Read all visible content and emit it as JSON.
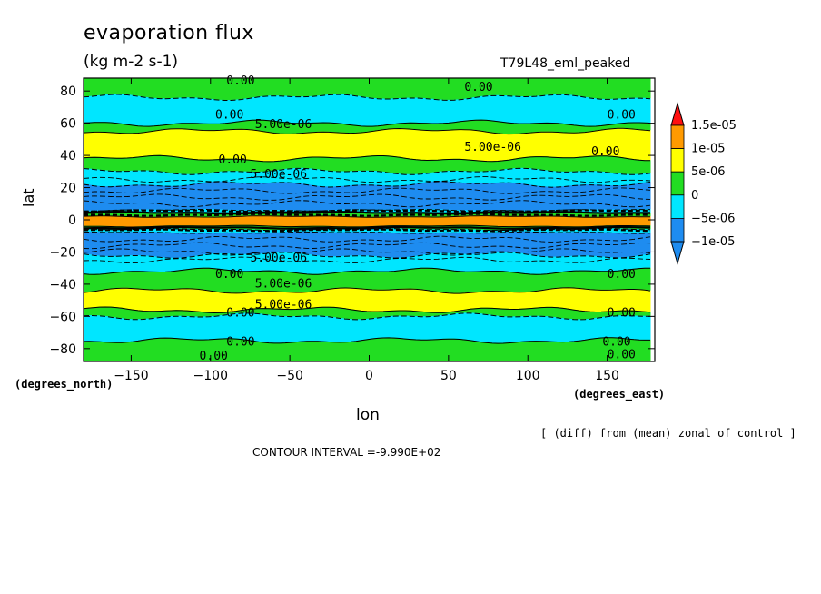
{
  "title": "evaporation flux",
  "units": "(kg m-2 s-1)",
  "run_label": "T79L48_eml_peaked",
  "note": "[ (diff) from (mean) zonal of control ]",
  "contour_interval": "CONTOUR INTERVAL =-9.990E+02",
  "chart_data": {
    "type": "heatmap",
    "title": "evaporation flux",
    "xlabel": "lon",
    "ylabel": "lat",
    "x_units": "(degrees_east)",
    "y_units": "(degrees_north)",
    "xlim": [
      -180,
      180
    ],
    "ylim": [
      -88,
      88
    ],
    "xticks": [
      -150,
      -100,
      -50,
      0,
      50,
      100,
      150
    ],
    "yticks": [
      -80,
      -60,
      -40,
      -20,
      0,
      20,
      40,
      60,
      80
    ],
    "colorbar": {
      "labels": [
        "1.5e-05",
        "1e-05",
        "5e-06",
        "0",
        "-5e-06",
        "-1e-05"
      ],
      "levels": [
        -1e-05,
        -5e-06,
        0,
        5e-06,
        1e-05,
        1.5e-05
      ],
      "colors": {
        "below": "#1e8cf0",
        "-1e-05_to_-5e-06": "#1e8cf0",
        "-5e-06_to_0": "#00e6ff",
        "0_to_5e-06": "#22dd22",
        "5e-06_to_1e-05": "#ffff00",
        "1e-05_to_1.5e-05": "#ff9a00",
        "above": "#ff1010"
      }
    },
    "zonal_bands": [
      {
        "lat_min": 76,
        "lat_max": 88,
        "value_band": "0_to_5e-06"
      },
      {
        "lat_min": 60,
        "lat_max": 76,
        "value_band": "-5e-06_to_0"
      },
      {
        "lat_min": 55,
        "lat_max": 60,
        "value_band": "0_to_5e-06"
      },
      {
        "lat_min": 38,
        "lat_max": 55,
        "value_band": "5e-06_to_1e-05"
      },
      {
        "lat_min": 30,
        "lat_max": 38,
        "value_band": "0_to_5e-06"
      },
      {
        "lat_min": 22,
        "lat_max": 30,
        "value_band": "-5e-06_to_0"
      },
      {
        "lat_min": 6,
        "lat_max": 22,
        "value_band": "-1e-05_to_-5e-06"
      },
      {
        "lat_min": 4,
        "lat_max": 6,
        "value_band": "-5e-06_to_0"
      },
      {
        "lat_min": 2,
        "lat_max": 4,
        "value_band": "0_to_5e-06"
      },
      {
        "lat_min": -4,
        "lat_max": 2,
        "value_band": "1e-05_to_1.5e-05"
      },
      {
        "lat_min": -6,
        "lat_max": -4,
        "value_band": "0_to_5e-06"
      },
      {
        "lat_min": -8,
        "lat_max": -6,
        "value_band": "-5e-06_to_0"
      },
      {
        "lat_min": -22,
        "lat_max": -8,
        "value_band": "-1e-05_to_-5e-06"
      },
      {
        "lat_min": -32,
        "lat_max": -22,
        "value_band": "-5e-06_to_0"
      },
      {
        "lat_min": -44,
        "lat_max": -32,
        "value_band": "0_to_5e-06"
      },
      {
        "lat_min": -56,
        "lat_max": -44,
        "value_band": "5e-06_to_1e-05"
      },
      {
        "lat_min": -60,
        "lat_max": -56,
        "value_band": "0_to_5e-06"
      },
      {
        "lat_min": -75,
        "lat_max": -60,
        "value_band": "-5e-06_to_0"
      },
      {
        "lat_min": -88,
        "lat_max": -75,
        "value_band": "0_to_5e-06"
      }
    ],
    "contour_labels": [
      {
        "text": "0.00",
        "lon": -90,
        "lat": 84
      },
      {
        "text": "0.00",
        "lon": 60,
        "lat": 80
      },
      {
        "text": "0.00",
        "lon": -97,
        "lat": 63
      },
      {
        "text": "0.00",
        "lon": 150,
        "lat": 63
      },
      {
        "text": "5.00e-06",
        "lon": -72,
        "lat": 57
      },
      {
        "text": "5.00e-06",
        "lon": 60,
        "lat": 43
      },
      {
        "text": "0.00",
        "lon": 140,
        "lat": 40
      },
      {
        "text": "0.00",
        "lon": -95,
        "lat": 35
      },
      {
        "text": "5.00e-06",
        "lon": -75,
        "lat": 26
      },
      {
        "text": "5.00e-06",
        "lon": -75,
        "lat": -26
      },
      {
        "text": "0.00",
        "lon": -97,
        "lat": -36
      },
      {
        "text": "0.00",
        "lon": 150,
        "lat": -36
      },
      {
        "text": "5.00e-06",
        "lon": -72,
        "lat": -42
      },
      {
        "text": "5.00e-06",
        "lon": -72,
        "lat": -55
      },
      {
        "text": "0.00",
        "lon": -90,
        "lat": -60
      },
      {
        "text": "0.00",
        "lon": 150,
        "lat": -60
      },
      {
        "text": "0.00",
        "lon": -90,
        "lat": -78
      },
      {
        "text": "0.00",
        "lon": 147,
        "lat": -78
      },
      {
        "text": "0.00",
        "lon": 150,
        "lat": -86
      },
      {
        "text": "0.00",
        "lon": -107,
        "lat": -87
      }
    ]
  }
}
